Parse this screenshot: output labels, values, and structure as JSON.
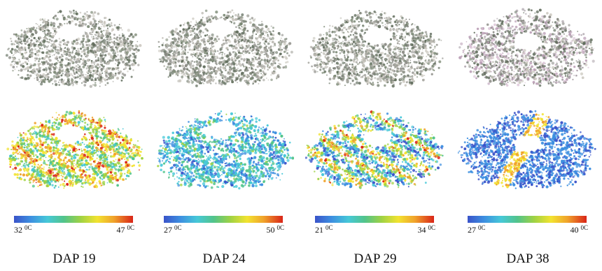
{
  "panels": [
    {
      "label": "DAP 19",
      "temp_min": "32",
      "temp_max": "47",
      "unit": "0C",
      "hole": [
        0.47,
        0.3
      ],
      "palette": "hot"
    },
    {
      "label": "DAP 24",
      "temp_min": "27",
      "temp_max": "50",
      "unit": "0C",
      "hole": [
        0.48,
        0.26
      ],
      "palette": "cool"
    },
    {
      "label": "DAP 29",
      "temp_min": "21",
      "temp_max": "34",
      "unit": "0C",
      "hole": [
        0.52,
        0.34
      ],
      "palette": "mixed"
    },
    {
      "label": "DAP 38",
      "temp_min": "27",
      "temp_max": "40",
      "unit": "0C",
      "hole": [
        0.5,
        0.4
      ],
      "palette": "blue"
    }
  ],
  "colormap": [
    "#3a53c9",
    "#3d8fe0",
    "#46c8d8",
    "#52c48a",
    "#9fd244",
    "#f2e330",
    "#f0a22b",
    "#d92418"
  ]
}
